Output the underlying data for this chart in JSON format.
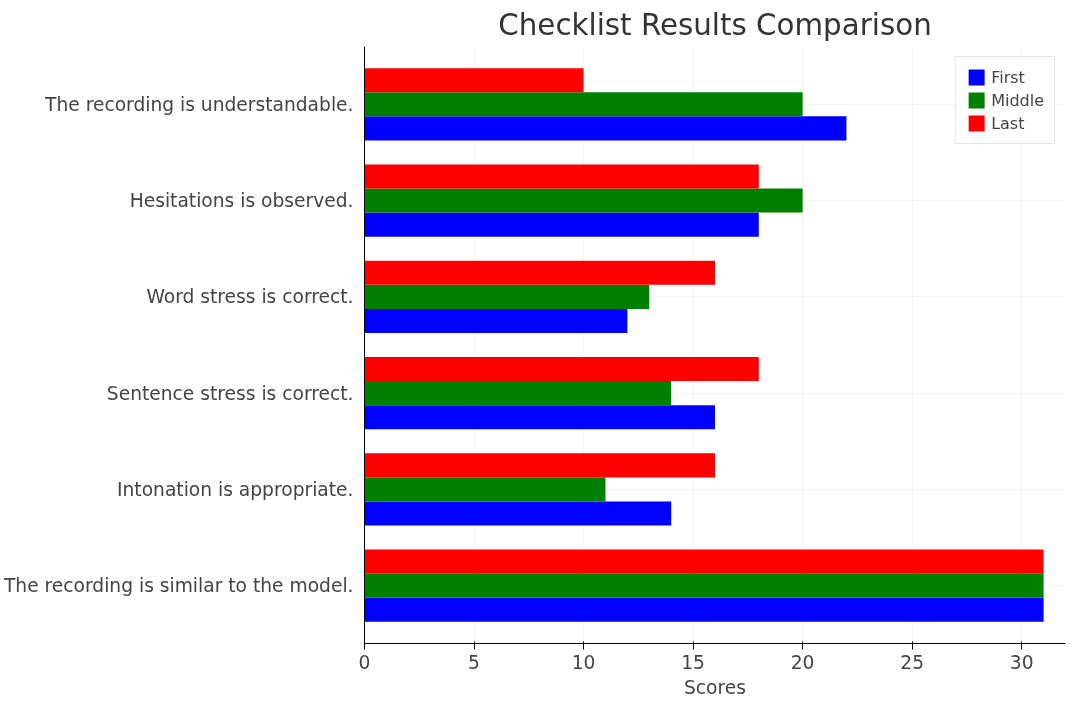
{
  "chart_data": {
    "type": "bar",
    "orientation": "horizontal",
    "title": "Checklist Results Comparison",
    "xlabel": "Scores",
    "categories": [
      "The recording is understandable.",
      "Hesitations is observed.",
      "Word stress is correct.",
      "Sentence stress is correct.",
      "Intonation is appropriate.",
      "The recording is similar to the model."
    ],
    "series": [
      {
        "name": "First",
        "color": "#0000ff",
        "values": [
          22,
          18,
          12,
          16,
          14,
          31
        ]
      },
      {
        "name": "Middle",
        "color": "#008000",
        "values": [
          20,
          20,
          13,
          14,
          11,
          31
        ]
      },
      {
        "name": "Last",
        "color": "#ff0000",
        "values": [
          10,
          18,
          16,
          18,
          16,
          31
        ]
      }
    ],
    "xlim": [
      0,
      32
    ],
    "xticks": [
      0,
      5,
      10,
      15,
      20,
      25,
      30
    ],
    "grid": true,
    "legend": "top right"
  }
}
